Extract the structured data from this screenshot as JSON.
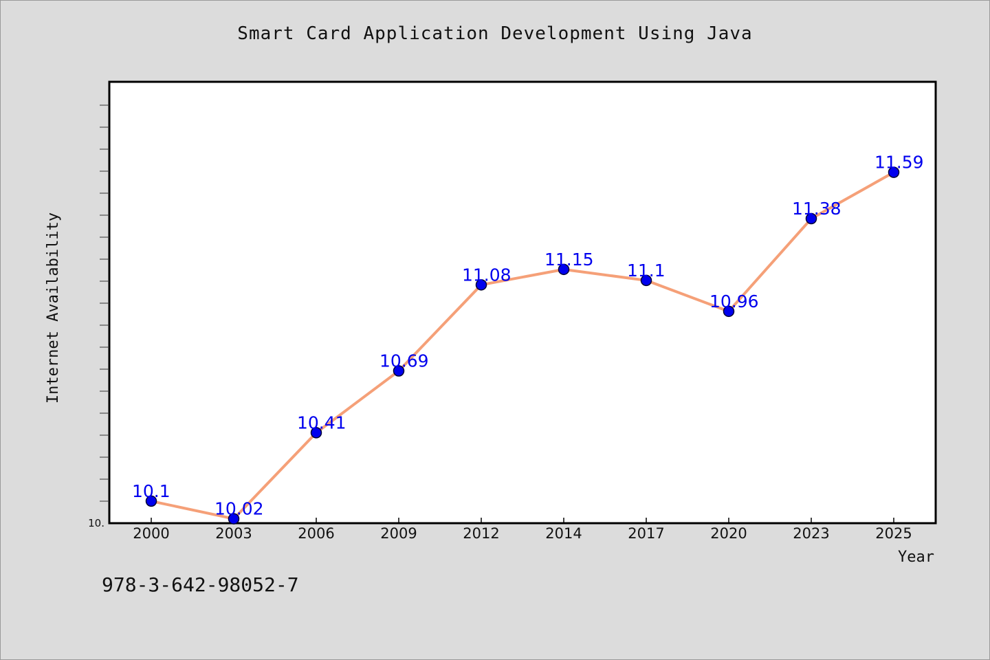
{
  "chart_data": {
    "type": "line",
    "title": "Smart Card Application Development Using Java",
    "xlabel": "Year",
    "ylabel": "Internet Availability",
    "categories": [
      "2000",
      "2003",
      "2006",
      "2009",
      "2012",
      "2014",
      "2017",
      "2020",
      "2023",
      "2025"
    ],
    "series": [
      {
        "values": [
          10.1,
          10.02,
          10.41,
          10.69,
          11.08,
          11.15,
          11.1,
          10.96,
          11.38,
          11.59
        ],
        "labels": [
          "10.1",
          "10.02",
          "10.41",
          "10.69",
          "11.08",
          "11.15",
          "11.1",
          "10.96",
          "11.38",
          "11.59"
        ]
      }
    ],
    "ylim": [
      10.0,
      12.0
    ],
    "y_tick_label": "10.",
    "grid": false,
    "legend": "none",
    "colors": {
      "line": "#f5a078",
      "marker": "#0000ee",
      "marker_edge": "#000033",
      "data_label": "#0000ee",
      "plot_background": "#ffffff",
      "page_background": "#dcdcdc"
    }
  },
  "footer": {
    "code": "978-3-642-98052-7"
  }
}
